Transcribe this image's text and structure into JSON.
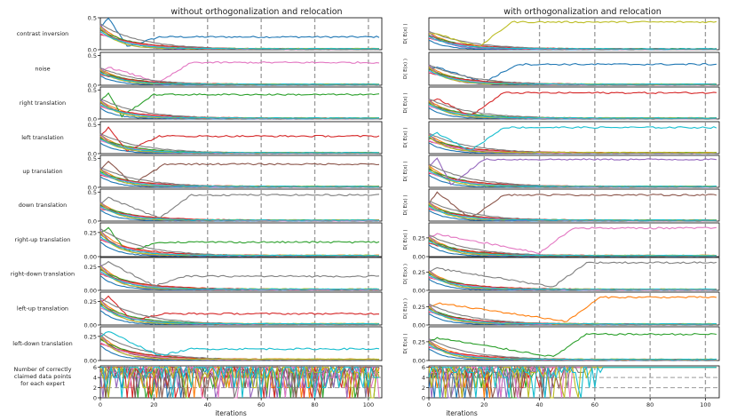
{
  "figure": {
    "left_title": "without orthogonalization and relocation",
    "right_title": "with orthogonalization and relocation",
    "xlabel": "iterations",
    "right_ylabel": "D( E(x) )"
  },
  "chart_data": {
    "type": "line",
    "x_range": [
      0,
      105
    ],
    "x_ticks": [
      0,
      20,
      40,
      60,
      80,
      100
    ],
    "x_tick_labels": [
      "0",
      "20",
      "40",
      "60",
      "80",
      "100"
    ],
    "vertical_dashed_lines_at": [
      20,
      40,
      60,
      80,
      100
    ],
    "series_colors": [
      "#1f77b4",
      "#ff7f0e",
      "#2ca02c",
      "#d62728",
      "#9467bd",
      "#8c564b",
      "#e377c2",
      "#7f7f7f",
      "#bcbd22",
      "#17becf"
    ],
    "rows": [
      {
        "label": "contrast inversion",
        "left_ylim": [
          0,
          0.5
        ],
        "left_ticks": [
          "0.0",
          "0.5"
        ],
        "right_ylim": [
          0,
          0.6
        ],
        "right_ticks": [],
        "left_lead": {
          "color": 0,
          "start": 0.35,
          "peak": 0.5,
          "plateau": 0.2,
          "rise_at": 10
        },
        "right_lead": {
          "color": 8,
          "start": 0.3,
          "peak": 0.3,
          "plateau": 0.52,
          "rise_at": 18
        }
      },
      {
        "label": "noise",
        "left_ylim": [
          0,
          0.55
        ],
        "left_ticks": [
          "0.0",
          "0.5"
        ],
        "right_ylim": [
          0,
          0.55
        ],
        "right_ticks": [],
        "left_lead": {
          "color": 6,
          "start": 0.25,
          "peak": 0.3,
          "plateau": 0.38,
          "rise_at": 22
        },
        "right_lead": {
          "color": 0,
          "start": 0.3,
          "peak": 0.3,
          "plateau": 0.35,
          "rise_at": 20
        }
      },
      {
        "label": "right translation",
        "left_ylim": [
          0,
          0.55
        ],
        "left_ticks": [
          "0.0",
          "0.5"
        ],
        "right_ylim": [
          0,
          0.55
        ],
        "right_ticks": [],
        "left_lead": {
          "color": 2,
          "start": 0.3,
          "peak": 0.45,
          "plateau": 0.42,
          "rise_at": 8
        },
        "right_lead": {
          "color": 3,
          "start": 0.3,
          "peak": 0.35,
          "plateau": 0.45,
          "rise_at": 15
        }
      },
      {
        "label": "left translation",
        "left_ylim": [
          0,
          0.55
        ],
        "left_ticks": [
          "0.0",
          "0.5"
        ],
        "right_ylim": [
          0,
          0.55
        ],
        "right_ticks": [],
        "left_lead": {
          "color": 3,
          "start": 0.3,
          "peak": 0.45,
          "plateau": 0.3,
          "rise_at": 10
        },
        "right_lead": {
          "color": 9,
          "start": 0.3,
          "peak": 0.35,
          "plateau": 0.45,
          "rise_at": 15
        }
      },
      {
        "label": "up translation",
        "left_ylim": [
          0,
          0.55
        ],
        "left_ticks": [
          "0.0",
          "0.5"
        ],
        "right_ylim": [
          0,
          0.55
        ],
        "right_ticks": [],
        "left_lead": {
          "color": 5,
          "start": 0.3,
          "peak": 0.45,
          "plateau": 0.4,
          "rise_at": 12
        },
        "right_lead": {
          "color": 4,
          "start": 0.35,
          "peak": 0.5,
          "plateau": 0.48,
          "rise_at": 8
        }
      },
      {
        "label": "down translation",
        "left_ylim": [
          0,
          0.55
        ],
        "left_ticks": [
          "0.0",
          "0.5"
        ],
        "right_ylim": [
          0,
          0.55
        ],
        "right_ticks": [],
        "left_lead": {
          "color": 7,
          "start": 0.3,
          "peak": 0.4,
          "plateau": 0.45,
          "rise_at": 22
        },
        "right_lead": {
          "color": 5,
          "start": 0.3,
          "peak": 0.5,
          "plateau": 0.45,
          "rise_at": 15
        }
      },
      {
        "label": "right-up translation",
        "left_ylim": [
          0,
          0.35
        ],
        "left_ticks": [
          "0.00",
          "0.25"
        ],
        "right_ylim": [
          0,
          0.45
        ],
        "right_ticks": [
          "0.00",
          "0.25"
        ],
        "left_lead": {
          "color": 2,
          "start": 0.25,
          "peak": 0.3,
          "plateau": 0.15,
          "rise_at": 10
        },
        "right_lead": {
          "color": 6,
          "start": 0.25,
          "peak": 0.3,
          "plateau": 0.38,
          "rise_at": 40
        }
      },
      {
        "label": "right-down translation",
        "left_ylim": [
          0,
          0.35
        ],
        "left_ticks": [
          "0.00",
          "0.25"
        ],
        "right_ylim": [
          0,
          0.45
        ],
        "right_ticks": [
          "0.00",
          "0.25"
        ],
        "left_lead": {
          "color": 7,
          "start": 0.25,
          "peak": 0.3,
          "plateau": 0.15,
          "rise_at": 20
        },
        "right_lead": {
          "color": 7,
          "start": 0.25,
          "peak": 0.3,
          "plateau": 0.38,
          "rise_at": 45
        }
      },
      {
        "label": "left-up translation",
        "left_ylim": [
          0,
          0.35
        ],
        "left_ticks": [
          "0.00",
          "0.25"
        ],
        "right_ylim": [
          0,
          0.45
        ],
        "right_ticks": [
          "0.00",
          "0.25"
        ],
        "left_lead": {
          "color": 3,
          "start": 0.25,
          "peak": 0.3,
          "plateau": 0.12,
          "rise_at": 12
        },
        "right_lead": {
          "color": 1,
          "start": 0.25,
          "peak": 0.3,
          "plateau": 0.38,
          "rise_at": 50
        }
      },
      {
        "label": "left-down translation",
        "left_ylim": [
          0,
          0.35
        ],
        "left_ticks": [
          "0.00",
          "0.25"
        ],
        "right_ylim": [
          0,
          0.45
        ],
        "right_ticks": [
          "0.00",
          "0.25"
        ],
        "left_lead": {
          "color": 9,
          "start": 0.25,
          "peak": 0.3,
          "plateau": 0.12,
          "rise_at": 22
        },
        "right_lead": {
          "color": 2,
          "start": 0.25,
          "peak": 0.3,
          "plateau": 0.35,
          "rise_at": 45
        }
      },
      {
        "label": "Number of correctly claimed data points for each expert",
        "left_ylim": [
          0,
          6.3
        ],
        "left_ticks": [
          "0",
          "2",
          "4",
          "6"
        ],
        "right_ylim": [
          0,
          6.3
        ],
        "right_ticks": [
          "0",
          "2",
          "4",
          "6"
        ],
        "type": "count"
      }
    ]
  }
}
